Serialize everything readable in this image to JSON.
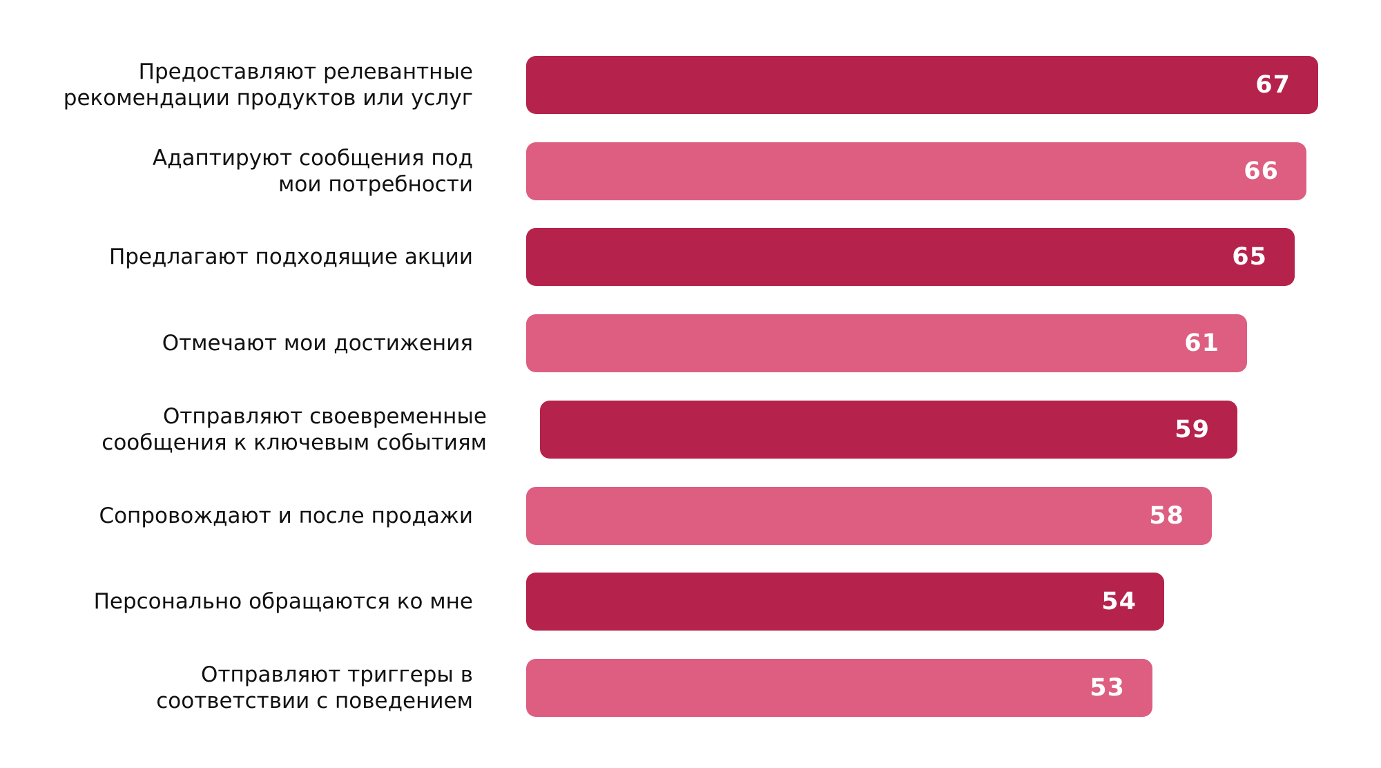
{
  "chart_data": {
    "type": "bar",
    "orientation": "horizontal",
    "categories": [
      "Предоставляют релевантные\nрекомендации продуктов или услуг",
      "Адаптируют сообщения под\nмои потребности",
      "Предлагают подходящие акции",
      "Отмечают мои достижения",
      "Отправляют своевременные\nсообщения к ключевым событиям",
      "Сопровождают и после продажи",
      "Персонально обращаются ко мне",
      "Отправляют триггеры в\nсоответствии с поведением"
    ],
    "values": [
      67,
      66,
      65,
      61,
      59,
      58,
      54,
      53
    ],
    "value_labels": [
      "67",
      "66",
      "65",
      "61",
      "59",
      "58",
      "54",
      "53"
    ],
    "bar_colors": [
      "#b5224b",
      "#dd5e80",
      "#b5224b",
      "#dd5e80",
      "#b5224b",
      "#dd5e80",
      "#b5224b",
      "#dd5e80"
    ],
    "data_labels": "inside-end",
    "grid": false,
    "legend": "none"
  }
}
